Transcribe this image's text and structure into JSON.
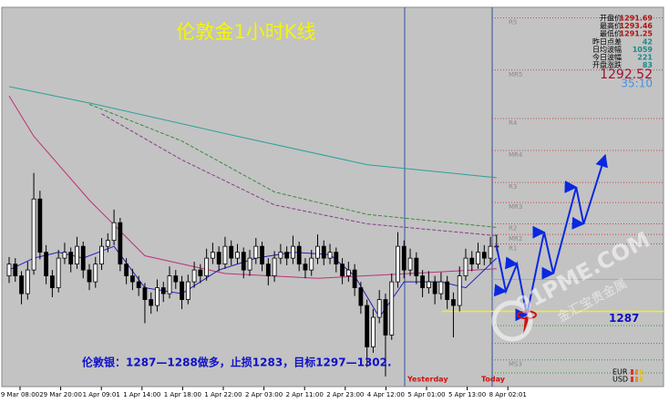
{
  "chart_data": {
    "type": "candlestick",
    "title": "伦敦金1小时K线",
    "ylim": [
      1280.8,
      1312.7
    ],
    "up_color": "#ffffff",
    "down_color": "#000000",
    "ohlc": [
      [
        1290.0,
        1291.6,
        1289.4,
        1291.0
      ],
      [
        1291.0,
        1291.5,
        1289.5,
        1290.0
      ],
      [
        1290.0,
        1290.4,
        1287.6,
        1288.5
      ],
      [
        1288.5,
        1291.2,
        1288.0,
        1290.5
      ],
      [
        1290.5,
        1298.7,
        1290.1,
        1296.5
      ],
      [
        1296.5,
        1297.2,
        1291.4,
        1292.0
      ],
      [
        1292.0,
        1292.6,
        1289.3,
        1290.0
      ],
      [
        1290.0,
        1290.5,
        1288.2,
        1289.0
      ],
      [
        1289.0,
        1292.2,
        1288.6,
        1291.5
      ],
      [
        1291.5,
        1292.8,
        1291.0,
        1292.0
      ],
      [
        1292.0,
        1292.4,
        1290.3,
        1291.0
      ],
      [
        1291.0,
        1293.3,
        1290.6,
        1292.5
      ],
      [
        1292.5,
        1292.9,
        1289.8,
        1290.5
      ],
      [
        1290.5,
        1291.0,
        1288.8,
        1289.5
      ],
      [
        1289.5,
        1291.6,
        1289.0,
        1291.0
      ],
      [
        1291.0,
        1293.2,
        1290.5,
        1292.5
      ],
      [
        1292.5,
        1293.6,
        1292.0,
        1293.0
      ],
      [
        1293.0,
        1295.6,
        1292.6,
        1294.5
      ],
      [
        1294.5,
        1294.9,
        1290.4,
        1291.0
      ],
      [
        1291.0,
        1291.5,
        1289.3,
        1290.0
      ],
      [
        1290.0,
        1290.6,
        1288.8,
        1289.5
      ],
      [
        1289.5,
        1290.0,
        1288.3,
        1289.0
      ],
      [
        1289.0,
        1289.4,
        1286.0,
        1288.0
      ],
      [
        1288.0,
        1288.6,
        1286.8,
        1287.5
      ],
      [
        1287.5,
        1289.7,
        1287.0,
        1289.0
      ],
      [
        1289.0,
        1289.5,
        1287.8,
        1288.5
      ],
      [
        1288.5,
        1290.8,
        1288.1,
        1290.0
      ],
      [
        1290.0,
        1290.5,
        1288.9,
        1289.5
      ],
      [
        1289.5,
        1290.0,
        1287.2,
        1288.0
      ],
      [
        1288.0,
        1290.1,
        1287.6,
        1289.5
      ],
      [
        1289.5,
        1291.2,
        1289.0,
        1290.5
      ],
      [
        1290.5,
        1291.0,
        1289.4,
        1290.0
      ],
      [
        1290.0,
        1292.3,
        1289.6,
        1291.5
      ],
      [
        1291.5,
        1292.8,
        1291.0,
        1292.0
      ],
      [
        1292.0,
        1292.5,
        1290.4,
        1291.0
      ],
      [
        1291.0,
        1293.3,
        1290.6,
        1292.5
      ],
      [
        1292.5,
        1293.0,
        1290.9,
        1291.5
      ],
      [
        1291.5,
        1292.7,
        1291.0,
        1292.0
      ],
      [
        1292.0,
        1292.4,
        1289.8,
        1290.5
      ],
      [
        1290.5,
        1292.2,
        1290.0,
        1291.5
      ],
      [
        1291.5,
        1293.2,
        1291.0,
        1292.5
      ],
      [
        1292.5,
        1292.9,
        1290.4,
        1291.0
      ],
      [
        1291.0,
        1291.5,
        1289.2,
        1290.0
      ],
      [
        1290.0,
        1292.1,
        1289.5,
        1291.5
      ],
      [
        1291.5,
        1292.7,
        1291.0,
        1292.0
      ],
      [
        1292.0,
        1292.5,
        1290.9,
        1291.5
      ],
      [
        1291.5,
        1293.4,
        1291.0,
        1292.5
      ],
      [
        1292.5,
        1292.9,
        1290.4,
        1291.0
      ],
      [
        1291.0,
        1291.5,
        1289.8,
        1290.5
      ],
      [
        1290.5,
        1292.2,
        1290.0,
        1291.5
      ],
      [
        1291.5,
        1293.5,
        1291.0,
        1292.5
      ],
      [
        1292.5,
        1293.0,
        1290.9,
        1291.5
      ],
      [
        1291.5,
        1292.7,
        1291.0,
        1292.0
      ],
      [
        1292.0,
        1292.4,
        1290.3,
        1291.0
      ],
      [
        1291.0,
        1291.5,
        1289.3,
        1290.0
      ],
      [
        1290.0,
        1291.2,
        1289.5,
        1290.5
      ],
      [
        1290.5,
        1291.0,
        1288.3,
        1289.0
      ],
      [
        1289.0,
        1289.5,
        1286.8,
        1287.5
      ],
      [
        1287.5,
        1288.0,
        1282.3,
        1284.0
      ],
      [
        1284.0,
        1287.2,
        1283.5,
        1286.5
      ],
      [
        1286.5,
        1288.8,
        1286.0,
        1288.0
      ],
      [
        1288.0,
        1288.5,
        1281.5,
        1285.0
      ],
      [
        1285.0,
        1290.2,
        1284.6,
        1289.5
      ],
      [
        1289.5,
        1293.7,
        1289.0,
        1292.5
      ],
      [
        1292.5,
        1293.0,
        1289.8,
        1290.5
      ],
      [
        1290.5,
        1292.3,
        1290.0,
        1291.5
      ],
      [
        1291.5,
        1292.0,
        1289.3,
        1290.0
      ],
      [
        1290.0,
        1290.5,
        1288.2,
        1289.0
      ],
      [
        1289.0,
        1290.4,
        1288.5,
        1289.5
      ],
      [
        1289.5,
        1290.0,
        1287.6,
        1288.5
      ],
      [
        1288.5,
        1290.3,
        1288.0,
        1289.5
      ],
      [
        1289.5,
        1290.0,
        1287.2,
        1288.0
      ],
      [
        1288.0,
        1288.6,
        1284.8,
        1287.5
      ],
      [
        1287.5,
        1290.8,
        1287.0,
        1290.0
      ],
      [
        1290.0,
        1292.3,
        1289.6,
        1291.5
      ],
      [
        1291.5,
        1292.1,
        1290.4,
        1291.0
      ],
      [
        1291.0,
        1292.8,
        1290.6,
        1292.0
      ],
      [
        1292.0,
        1292.6,
        1290.9,
        1291.5
      ],
      [
        1291.5,
        1293.3,
        1291.0,
        1292.5
      ],
      [
        1292.5,
        1293.5,
        1292.1,
        1292.52
      ]
    ],
    "lines": [
      {
        "color": "#2aa198",
        "dash": false,
        "x": [
          0,
          14,
          37,
          58,
          79
        ],
        "values": [
          1306.0,
          1304.5,
          1301.8,
          1299.4,
          1298.3
        ]
      },
      {
        "color": "#3a8a3a",
        "dash": true,
        "x": [
          13,
          28,
          43,
          58,
          79
        ],
        "values": [
          1304.5,
          1301.4,
          1297.1,
          1295.2,
          1294.1
        ]
      },
      {
        "color": "#8a3a8a",
        "dash": true,
        "x": [
          15,
          28,
          43,
          58,
          79
        ],
        "values": [
          1303.7,
          1299.8,
          1296.0,
          1294.4,
          1293.4
        ]
      },
      {
        "color": "#c0307a",
        "dash": false,
        "x": [
          0,
          4,
          13,
          22,
          35,
          50,
          65,
          79
        ],
        "values": [
          1305.2,
          1301.8,
          1296.4,
          1291.7,
          1290.2,
          1289.8,
          1290.2,
          1290.6
        ]
      },
      {
        "color": "#2020c0",
        "dash": false,
        "x": [
          0,
          4,
          8,
          12,
          17,
          22,
          28,
          34,
          40,
          46,
          52,
          56,
          60,
          64,
          70,
          74,
          79
        ],
        "values": [
          1290.5,
          1291.5,
          1292.0,
          1291.5,
          1292.5,
          1289.0,
          1288.5,
          1290.5,
          1291.5,
          1292.0,
          1291.8,
          1290.0,
          1286.5,
          1289.5,
          1289.5,
          1289.0,
          1291.5
        ]
      }
    ],
    "forecast": {
      "color": "#0a28e0",
      "x": [
        79,
        80.5,
        82.3,
        83.9,
        86.7,
        88.2,
        91.9,
        93.1,
        96.6
      ],
      "values": [
        1292.5,
        1288.7,
        1291.0,
        1286.7,
        1293.7,
        1290.2,
        1297.5,
        1294.4,
        1300.2
      ]
    },
    "levels": [
      {
        "label": "R5",
        "value": 1311.8,
        "color": "#d04040"
      },
      {
        "label": "MR5",
        "value": 1307.4,
        "color": "#d04040"
      },
      {
        "label": "R4",
        "value": 1303.3,
        "color": "#d04040"
      },
      {
        "label": "MR4",
        "value": 1300.6,
        "color": "#d04040"
      },
      {
        "label": "R3",
        "value": 1297.9,
        "color": "#d04040"
      },
      {
        "label": "MR3",
        "value": 1296.2,
        "color": "#d04040"
      },
      {
        "label": "R2",
        "value": 1294.4,
        "color": "#d04040"
      },
      {
        "label": "MR2",
        "value": 1293.5,
        "color": "#d04040"
      },
      {
        "label": "R1",
        "value": 1292.7,
        "color": "#d04040"
      },
      {
        "label": null,
        "value": 1289.7,
        "color": "#40d8d8"
      },
      {
        "label": null,
        "value": 1285.8,
        "color": "#2a9a2a"
      },
      {
        "label": null,
        "value": 1284.3,
        "color": "#2a9a2a"
      },
      {
        "label": "MS3",
        "value": 1282.9,
        "color": "#2a9a2a"
      },
      {
        "label": null,
        "value": 1281.8,
        "color": "#2a9a2a"
      }
    ],
    "support": 1287,
    "support_color": "#f0f020",
    "price": 1292.52,
    "timer": "35:10",
    "info": [
      {
        "label": "开盘价",
        "value": "1291.69",
        "color": "#b01010"
      },
      {
        "label": "最高价",
        "value": "1293.46",
        "color": "#b01010"
      },
      {
        "label": "最低价",
        "value": "1291.25",
        "color": "#b01010"
      },
      {
        "label": "昨日点差",
        "value": "42",
        "color": "#1a8a8a"
      },
      {
        "label": "日均波幅",
        "value": "1059",
        "color": "#1a8a8a"
      },
      {
        "label": "今日波幅",
        "value": "221",
        "color": "#1a8a8a"
      },
      {
        "label": "开盘涨跌",
        "value": "83",
        "color": "#1a8a8a"
      }
    ],
    "x_labels": [
      "9 Mar 08:00",
      "29 Mar 20:00",
      "1 Apr 09:01",
      "1 Apr 14:00",
      "1 Apr 18:00",
      "1 Apr 22:00",
      "2 Apr 03:00",
      "2 Apr 11:00",
      "2 Apr 23:00",
      "4 Apr 12:00",
      "5 Apr 01:00",
      "5 Apr 13:00",
      "8 Apr 02:01"
    ],
    "yesterday_label": "Yesterday",
    "today_label": "Today",
    "annotation": "伦敦银：1287—1288做多，止损1283，目标1297—1302.",
    "watermark": [
      "91PME.COM",
      "金汇宝贵金属"
    ],
    "currencies": [
      "EUR",
      "USD"
    ]
  }
}
